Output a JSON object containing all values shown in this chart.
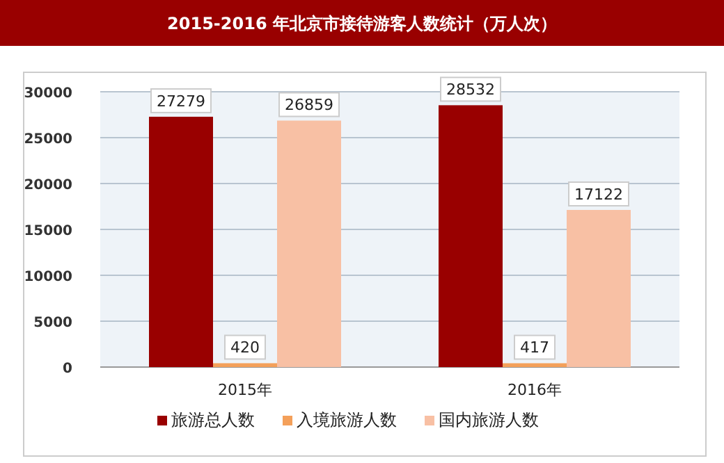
{
  "chart_data": {
    "type": "bar",
    "title": "2015-2016 年北京市接待游客人数统计（万人次）",
    "categories": [
      "2015年",
      "2016年"
    ],
    "series": [
      {
        "name": "旅游总人数",
        "color": "#990000",
        "values": [
          27279,
          28532
        ]
      },
      {
        "name": "入境旅游人数",
        "color": "#f4a05a",
        "values": [
          420,
          417
        ]
      },
      {
        "name": "国内旅游人数",
        "color": "#f8c0a4",
        "values": [
          26859,
          17122
        ]
      }
    ],
    "ylim": [
      0,
      30000
    ],
    "yticks": [
      0,
      5000,
      10000,
      15000,
      20000,
      25000,
      30000
    ],
    "grid": "y",
    "legend": "bottom",
    "data_labels": true
  }
}
